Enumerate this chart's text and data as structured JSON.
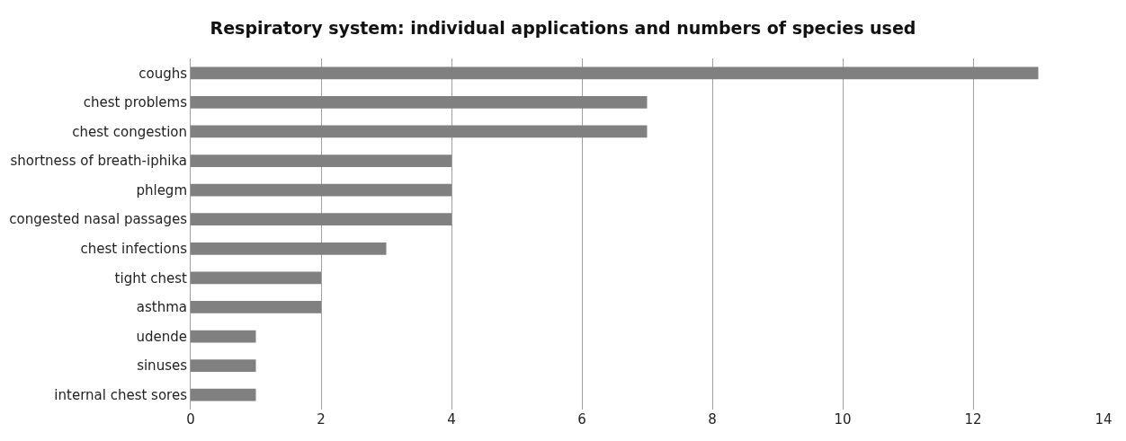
{
  "chart_data": {
    "type": "bar",
    "orientation": "horizontal",
    "title": "Respiratory system: individual applications and numbers of species used",
    "categories": [
      "coughs",
      "chest problems",
      "chest congestion",
      "shortness of breath-iphika",
      "phlegm",
      "congested nasal passages",
      "chest infections",
      "tight chest",
      "asthma",
      "udende",
      "sinuses",
      "internal chest sores"
    ],
    "values": [
      13,
      7,
      7,
      4,
      4,
      4,
      3,
      2,
      2,
      1,
      1,
      1
    ],
    "color": "#808080",
    "xlim": [
      0,
      14
    ],
    "xticks": [
      0,
      2,
      4,
      6,
      8,
      10,
      12,
      14
    ],
    "grid": "x"
  }
}
